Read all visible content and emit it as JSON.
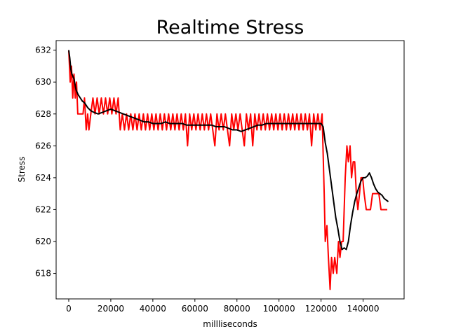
{
  "chart_data": {
    "type": "line",
    "title": "Realtime Stress",
    "xlabel": "millliseconds",
    "ylabel": "Stress",
    "xlim": [
      -6000,
      159500
    ],
    "ylim": [
      616.4,
      632.6
    ],
    "xticks": [
      0,
      20000,
      40000,
      60000,
      80000,
      100000,
      120000,
      140000
    ],
    "xtick_labels": [
      "0",
      "20000",
      "40000",
      "60000",
      "80000",
      "100000",
      "120000",
      "140000"
    ],
    "yticks": [
      618,
      620,
      622,
      624,
      626,
      628,
      630,
      632
    ],
    "ytick_labels": [
      "618",
      "620",
      "622",
      "624",
      "626",
      "628",
      "630",
      "632"
    ],
    "grid": false,
    "series": [
      {
        "color": "#ff0000",
        "values": [
          [
            0,
            632
          ],
          [
            700,
            630
          ],
          [
            1300,
            631
          ],
          [
            1900,
            629
          ],
          [
            2500,
            630.5
          ],
          [
            3100,
            629
          ],
          [
            3700,
            630
          ],
          [
            4300,
            628
          ],
          [
            5500,
            628
          ],
          [
            6800,
            628
          ],
          [
            7500,
            629
          ],
          [
            8300,
            627
          ],
          [
            9000,
            628
          ],
          [
            9600,
            627
          ],
          [
            10500,
            628
          ],
          [
            11500,
            629
          ],
          [
            12500,
            628
          ],
          [
            13500,
            629
          ],
          [
            14500,
            628
          ],
          [
            15500,
            629
          ],
          [
            16500,
            628
          ],
          [
            17500,
            629
          ],
          [
            18500,
            628
          ],
          [
            19500,
            629
          ],
          [
            20500,
            628
          ],
          [
            21500,
            629
          ],
          [
            22500,
            628
          ],
          [
            23500,
            629
          ],
          [
            24500,
            627
          ],
          [
            25500,
            628
          ],
          [
            26500,
            627
          ],
          [
            27500,
            628
          ],
          [
            28500,
            627
          ],
          [
            29500,
            628
          ],
          [
            30500,
            627
          ],
          [
            31500,
            628
          ],
          [
            32500,
            627
          ],
          [
            33500,
            628
          ],
          [
            34500,
            627
          ],
          [
            35500,
            628
          ],
          [
            36500,
            627
          ],
          [
            37500,
            628
          ],
          [
            38500,
            627
          ],
          [
            39500,
            628
          ],
          [
            40500,
            627
          ],
          [
            41500,
            628
          ],
          [
            42500,
            627
          ],
          [
            43500,
            628
          ],
          [
            44500,
            627
          ],
          [
            45500,
            628
          ],
          [
            46500,
            627
          ],
          [
            47500,
            628
          ],
          [
            48500,
            627
          ],
          [
            49500,
            628
          ],
          [
            50500,
            627
          ],
          [
            51500,
            628
          ],
          [
            52500,
            627
          ],
          [
            53500,
            628
          ],
          [
            54500,
            627
          ],
          [
            55500,
            628
          ],
          [
            56500,
            626
          ],
          [
            57500,
            628
          ],
          [
            58500,
            627
          ],
          [
            59500,
            628
          ],
          [
            60500,
            627
          ],
          [
            61500,
            628
          ],
          [
            62500,
            627
          ],
          [
            63500,
            628
          ],
          [
            64500,
            627
          ],
          [
            65500,
            628
          ],
          [
            66500,
            627
          ],
          [
            67500,
            628
          ],
          [
            68500,
            627
          ],
          [
            69500,
            626
          ],
          [
            70500,
            628
          ],
          [
            71500,
            627
          ],
          [
            72500,
            628
          ],
          [
            73500,
            627
          ],
          [
            74500,
            628
          ],
          [
            75500,
            627
          ],
          [
            76500,
            626
          ],
          [
            77500,
            628
          ],
          [
            78500,
            627
          ],
          [
            79500,
            628
          ],
          [
            80500,
            627
          ],
          [
            81500,
            628
          ],
          [
            82500,
            627
          ],
          [
            83500,
            626
          ],
          [
            84500,
            628
          ],
          [
            85500,
            627
          ],
          [
            86500,
            628
          ],
          [
            87500,
            626
          ],
          [
            88500,
            628
          ],
          [
            89500,
            627
          ],
          [
            90500,
            628
          ],
          [
            91500,
            627
          ],
          [
            92500,
            628
          ],
          [
            93500,
            627
          ],
          [
            94500,
            628
          ],
          [
            95500,
            627
          ],
          [
            96500,
            628
          ],
          [
            97500,
            627
          ],
          [
            98500,
            628
          ],
          [
            99500,
            627
          ],
          [
            100500,
            628
          ],
          [
            101500,
            627
          ],
          [
            102500,
            628
          ],
          [
            103500,
            627
          ],
          [
            104500,
            628
          ],
          [
            105500,
            627
          ],
          [
            106500,
            628
          ],
          [
            107500,
            627
          ],
          [
            108500,
            628
          ],
          [
            109500,
            627
          ],
          [
            110500,
            628
          ],
          [
            111500,
            627
          ],
          [
            112500,
            628
          ],
          [
            113500,
            627
          ],
          [
            114500,
            628
          ],
          [
            115500,
            626
          ],
          [
            116500,
            628
          ],
          [
            117500,
            627
          ],
          [
            118500,
            628
          ],
          [
            119500,
            627
          ],
          [
            120500,
            628
          ],
          [
            121500,
            623
          ],
          [
            122000,
            620
          ],
          [
            122800,
            621
          ],
          [
            123500,
            619
          ],
          [
            124300,
            617
          ],
          [
            125000,
            619
          ],
          [
            125800,
            618
          ],
          [
            126500,
            619
          ],
          [
            127500,
            618
          ],
          [
            128300,
            620
          ],
          [
            129000,
            619
          ],
          [
            129800,
            620
          ],
          [
            130500,
            620
          ],
          [
            131500,
            624
          ],
          [
            132300,
            626
          ],
          [
            133000,
            625
          ],
          [
            133800,
            626
          ],
          [
            134500,
            624
          ],
          [
            135300,
            625
          ],
          [
            136000,
            625
          ],
          [
            136800,
            623
          ],
          [
            137500,
            622
          ],
          [
            138300,
            623
          ],
          [
            139000,
            624
          ],
          [
            139800,
            624
          ],
          [
            140500,
            623
          ],
          [
            141500,
            622
          ],
          [
            142500,
            622
          ],
          [
            143500,
            622
          ],
          [
            144500,
            623
          ],
          [
            145500,
            623
          ],
          [
            146500,
            623
          ],
          [
            147500,
            623
          ],
          [
            148500,
            622
          ],
          [
            149500,
            622
          ],
          [
            150500,
            622
          ],
          [
            151500,
            622
          ]
        ]
      },
      {
        "color": "#000000",
        "values": [
          [
            0,
            632
          ],
          [
            500,
            631.5
          ],
          [
            1000,
            630.8
          ],
          [
            1500,
            630.5
          ],
          [
            2500,
            630.2
          ],
          [
            3500,
            629.5
          ],
          [
            4500,
            629.2
          ],
          [
            5500,
            629
          ],
          [
            6500,
            628.8
          ],
          [
            7500,
            628.7
          ],
          [
            9000,
            628.4
          ],
          [
            10500,
            628.2
          ],
          [
            12000,
            628.1
          ],
          [
            14000,
            628
          ],
          [
            16000,
            628.1
          ],
          [
            18000,
            628.2
          ],
          [
            20000,
            628.3
          ],
          [
            22000,
            628.2
          ],
          [
            24000,
            628.1
          ],
          [
            26000,
            628
          ],
          [
            28000,
            627.9
          ],
          [
            30000,
            627.8
          ],
          [
            32000,
            627.7
          ],
          [
            34000,
            627.6
          ],
          [
            36000,
            627.5
          ],
          [
            38000,
            627.5
          ],
          [
            40000,
            627.4
          ],
          [
            42000,
            627.4
          ],
          [
            44000,
            627.4
          ],
          [
            46000,
            627.5
          ],
          [
            48000,
            627.4
          ],
          [
            50000,
            627.4
          ],
          [
            52000,
            627.4
          ],
          [
            54000,
            627.4
          ],
          [
            56000,
            627.3
          ],
          [
            58000,
            627.3
          ],
          [
            60000,
            627.3
          ],
          [
            62000,
            627.3
          ],
          [
            64000,
            627.3
          ],
          [
            66000,
            627.3
          ],
          [
            68000,
            627.3
          ],
          [
            70000,
            627.2
          ],
          [
            72000,
            627.2
          ],
          [
            74000,
            627.2
          ],
          [
            76000,
            627.1
          ],
          [
            78000,
            627
          ],
          [
            80000,
            627
          ],
          [
            82000,
            626.9
          ],
          [
            84000,
            627
          ],
          [
            86000,
            627.1
          ],
          [
            88000,
            627.2
          ],
          [
            90000,
            627.3
          ],
          [
            92000,
            627.3
          ],
          [
            94000,
            627.4
          ],
          [
            96000,
            627.4
          ],
          [
            98000,
            627.4
          ],
          [
            100000,
            627.4
          ],
          [
            102000,
            627.4
          ],
          [
            104000,
            627.4
          ],
          [
            106000,
            627.4
          ],
          [
            108000,
            627.4
          ],
          [
            110000,
            627.4
          ],
          [
            112000,
            627.4
          ],
          [
            114000,
            627.4
          ],
          [
            116000,
            627.4
          ],
          [
            118000,
            627.4
          ],
          [
            120000,
            627.4
          ],
          [
            121000,
            627.2
          ],
          [
            122000,
            626.2
          ],
          [
            123000,
            625.5
          ],
          [
            124000,
            624.5
          ],
          [
            125000,
            623.5
          ],
          [
            126000,
            622.5
          ],
          [
            127000,
            621.5
          ],
          [
            128000,
            620.8
          ],
          [
            129000,
            620
          ],
          [
            130000,
            619.5
          ],
          [
            131000,
            619.6
          ],
          [
            132000,
            619.5
          ],
          [
            133000,
            620
          ],
          [
            134000,
            621
          ],
          [
            135000,
            621.8
          ],
          [
            136000,
            622.5
          ],
          [
            137000,
            623
          ],
          [
            138000,
            623.4
          ],
          [
            139000,
            623.8
          ],
          [
            140000,
            624
          ],
          [
            141000,
            624
          ],
          [
            142000,
            624.1
          ],
          [
            143000,
            624.3
          ],
          [
            144000,
            624
          ],
          [
            145000,
            623.6
          ],
          [
            146000,
            623.3
          ],
          [
            147000,
            623.1
          ],
          [
            148000,
            623
          ],
          [
            149000,
            622.9
          ],
          [
            150000,
            622.7
          ],
          [
            151000,
            622.6
          ],
          [
            152000,
            622.5
          ]
        ]
      }
    ]
  }
}
